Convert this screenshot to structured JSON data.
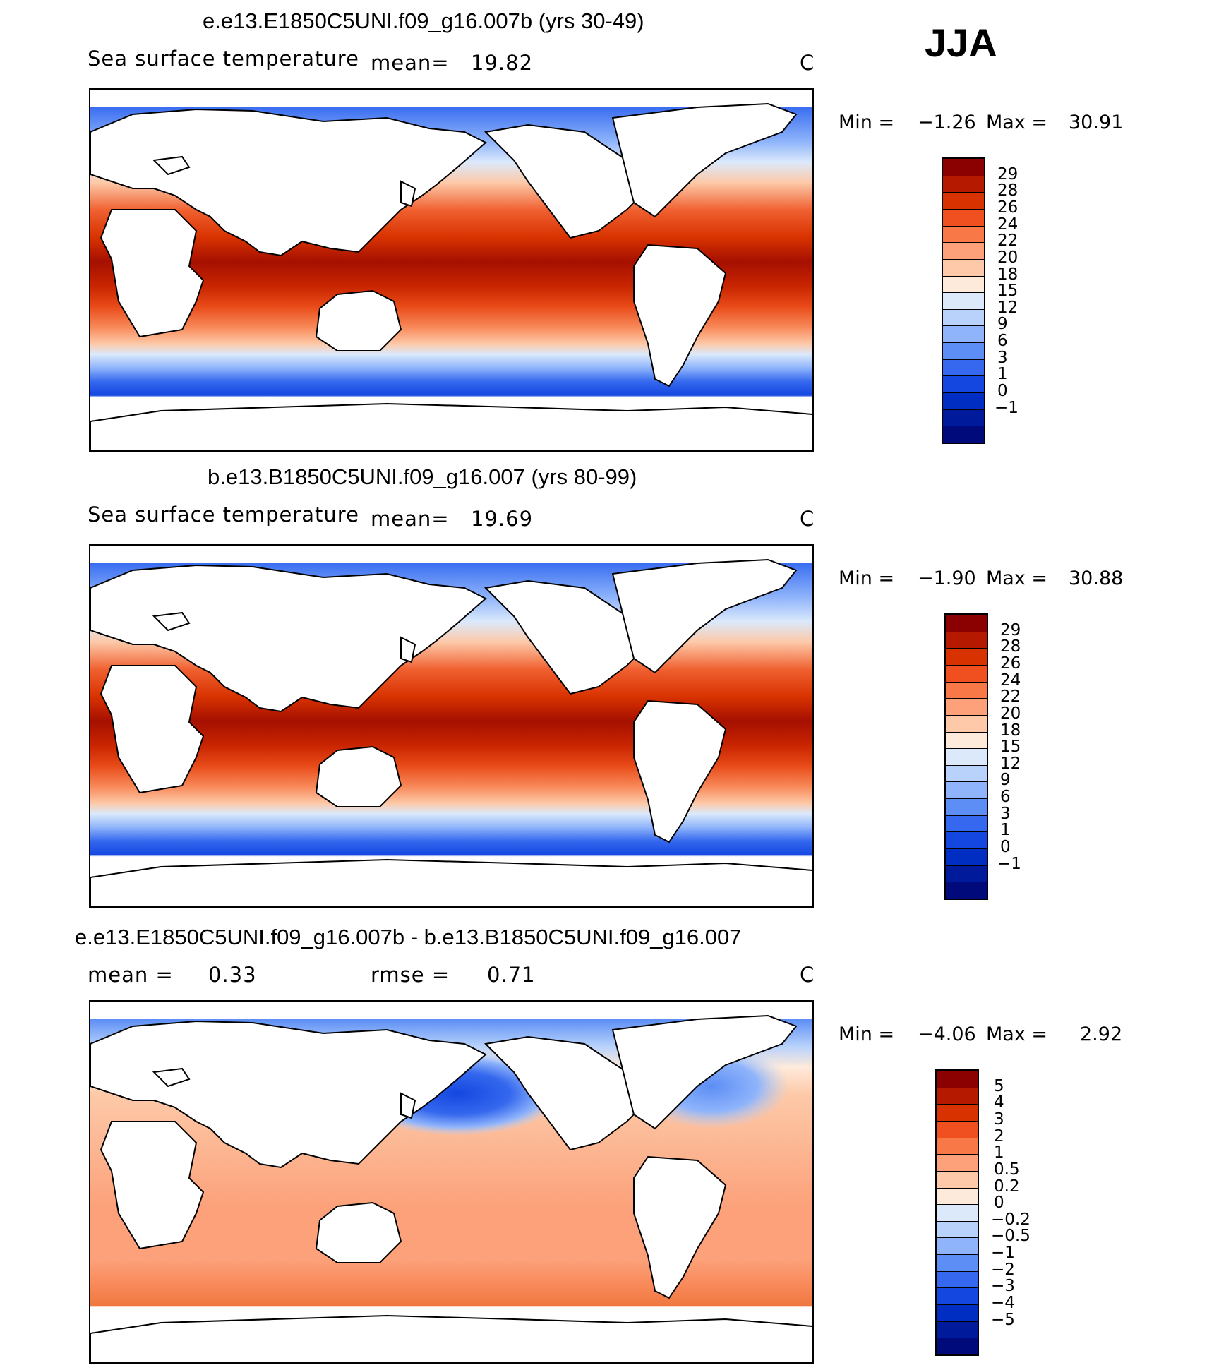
{
  "season": "JJA",
  "panels": [
    {
      "id": "p1",
      "title": "e.e13.E1850C5UNI.f09_g16.007b (yrs 30-49)",
      "variable": "Sea surface temperature",
      "stat_label": "mean=",
      "stat_value": "19.82",
      "stat2_label": "",
      "stat2_value": "",
      "units": "C",
      "min_label": "Min =",
      "min_value": "−1.26",
      "max_label": "Max =",
      "max_value": "30.91",
      "colorbar": {
        "colors": [
          "#8b0000",
          "#b51a00",
          "#d83200",
          "#f05020",
          "#f87848",
          "#fca17a",
          "#fdc9a8",
          "#feeadb",
          "#dbe9fb",
          "#b8d2fb",
          "#8fb4fb",
          "#5c8ef5",
          "#3568ee",
          "#1447e0",
          "#002ec2",
          "#001a9c",
          "#000a7a"
        ],
        "labels": [
          "29",
          "28",
          "26",
          "24",
          "22",
          "20",
          "18",
          "15",
          "12",
          "9",
          "6",
          "3",
          "1",
          "0",
          "−1"
        ]
      }
    },
    {
      "id": "p2",
      "title": "b.e13.B1850C5UNI.f09_g16.007 (yrs 80-99)",
      "variable": "Sea surface temperature",
      "stat_label": "mean=",
      "stat_value": "19.69",
      "stat2_label": "",
      "stat2_value": "",
      "units": "C",
      "min_label": "Min =",
      "min_value": "−1.90",
      "max_label": "Max =",
      "max_value": "30.88",
      "colorbar": {
        "colors": [
          "#8b0000",
          "#b51a00",
          "#d83200",
          "#f05020",
          "#f87848",
          "#fca17a",
          "#fdc9a8",
          "#feeadb",
          "#dbe9fb",
          "#b8d2fb",
          "#8fb4fb",
          "#5c8ef5",
          "#3568ee",
          "#1447e0",
          "#002ec2",
          "#001a9c",
          "#000a7a"
        ],
        "labels": [
          "29",
          "28",
          "26",
          "24",
          "22",
          "20",
          "18",
          "15",
          "12",
          "9",
          "6",
          "3",
          "1",
          "0",
          "−1"
        ]
      }
    },
    {
      "id": "p3",
      "title": "e.e13.E1850C5UNI.f09_g16.007b - b.e13.B1850C5UNI.f09_g16.007",
      "variable": "",
      "stat_label": "mean =",
      "stat_value": "0.33",
      "stat2_label": "rmse =",
      "stat2_value": "0.71",
      "units": "C",
      "min_label": "Min =",
      "min_value": "−4.06",
      "max_label": "Max =",
      "max_value": "2.92",
      "colorbar": {
        "colors": [
          "#8b0000",
          "#b51a00",
          "#d83200",
          "#f05020",
          "#f87848",
          "#fca17a",
          "#fdc9a8",
          "#feeadb",
          "#dbe9fb",
          "#b8d2fb",
          "#8fb4fb",
          "#5c8ef5",
          "#3568ee",
          "#1447e0",
          "#002ec2",
          "#001a9c",
          "#000a7a"
        ],
        "labels": [
          "5",
          "4",
          "3",
          "2",
          "1",
          "0.5",
          "0.2",
          "0",
          "−0.2",
          "−0.5",
          "−1",
          "−2",
          "−3",
          "−4",
          "−5"
        ]
      }
    }
  ]
}
